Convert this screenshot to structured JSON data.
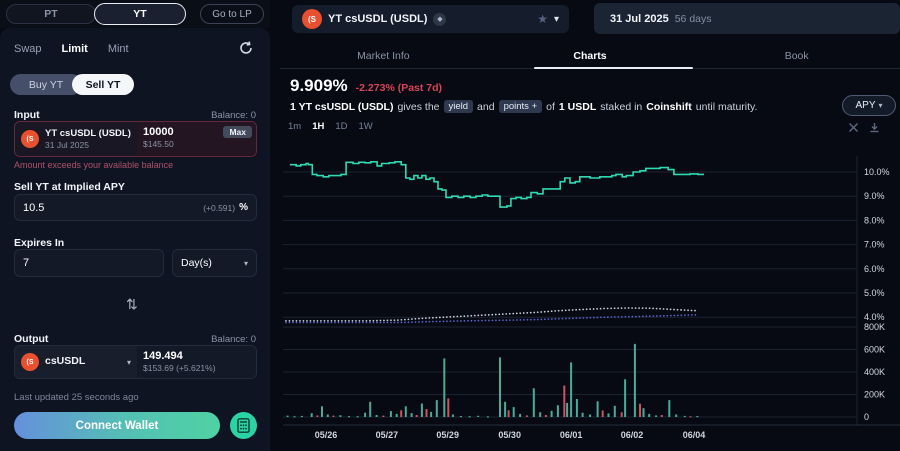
{
  "colors": {
    "accent_teal": "#2fd9b2",
    "accent_red": "#d94457",
    "brand_orange": "#e8502f",
    "button_gradient_from": "#6590dc",
    "button_gradient_to": "#4fd2a2"
  },
  "topbar": {
    "pt_label": "PT",
    "yt_label": "YT",
    "lp_label": "Go to LP"
  },
  "trade_panel": {
    "tabs": [
      "Swap",
      "Limit",
      "Mint"
    ],
    "active_tab": "Limit",
    "toggle": {
      "buy": "Buy YT",
      "sell": "Sell YT",
      "active": "Sell YT"
    },
    "input_label": "Input",
    "input_balance": "Balance: 0",
    "input_token": {
      "name": "YT csUSDL (USDL)",
      "maturity": "31 Jul 2025"
    },
    "input_amount": "10000",
    "input_usd": "$145.50",
    "max_label": "Max",
    "error": "Amount exceeds your available balance",
    "apy_section": {
      "label": "Sell YT at Implied APY",
      "value": "10.5",
      "delta": "(+0.591)",
      "unit": "%"
    },
    "expires": {
      "label": "Expires In",
      "value": "7",
      "unit": "Day(s)"
    },
    "output_label": "Output",
    "output_balance": "Balance: 0",
    "output_token": "csUSDL",
    "output_amount": "149.494",
    "output_usd": "$153.69 (+5.621%)",
    "last_updated": "Last updated 25 seconds ago",
    "connect_label": "Connect Wallet"
  },
  "market_header": {
    "token_name": "YT csUSDL (USDL)",
    "maturity_date": "31 Jul 2025",
    "days_left": "56 days"
  },
  "market_tabs": {
    "items": [
      "Market Info",
      "Charts",
      "Book"
    ],
    "active": "Charts"
  },
  "price_header": {
    "apy": "9.909%",
    "change": "-2.273% (Past 7d)"
  },
  "description": {
    "t1": "1 YT csUSDL (USDL)",
    "t2": "gives the",
    "badge_yield": "yield",
    "t3": "and",
    "badge_points": "points +",
    "t4": "of",
    "t5": "1 USDL",
    "t6": "staked in",
    "t7": "Coinshift",
    "t8": "until maturity."
  },
  "chart_controls": {
    "timeframes": [
      "1m",
      "1H",
      "1D",
      "1W"
    ],
    "active_timeframe": "1H",
    "unit_label": "APY"
  },
  "chart_data": {
    "type": "line",
    "title": "YT csUSDL (USDL) Implied APY",
    "unit": "APY %",
    "legend_position": "none",
    "grid": true,
    "y_axis": {
      "side": "right",
      "percent_range": [
        3.6,
        10.6
      ],
      "percent_ticks": [
        {
          "v": 10,
          "label": "10.0%"
        },
        {
          "v": 9,
          "label": "9.0%"
        },
        {
          "v": 8,
          "label": "8.0%"
        },
        {
          "v": 7,
          "label": "7.0%"
        },
        {
          "v": 6,
          "label": "6.0%"
        },
        {
          "v": 5,
          "label": "5.0%"
        },
        {
          "v": 4,
          "label": "4.0%"
        }
      ],
      "volume_range": [
        0,
        800
      ],
      "volume_ticks": [
        {
          "v": 800,
          "label": "800K"
        },
        {
          "v": 600,
          "label": "600K"
        },
        {
          "v": 400,
          "label": "400K"
        },
        {
          "v": 200,
          "label": "200K"
        },
        {
          "v": 0,
          "label": "0"
        }
      ]
    },
    "x_axis": {
      "ticks": [
        {
          "f": 0.075,
          "label": "05/26"
        },
        {
          "f": 0.181,
          "label": "05/27"
        },
        {
          "f": 0.287,
          "label": "05/29"
        },
        {
          "f": 0.395,
          "label": "05/30"
        },
        {
          "f": 0.502,
          "label": "06/01"
        },
        {
          "f": 0.608,
          "label": "06/02"
        },
        {
          "f": 0.716,
          "label": "06/04"
        }
      ]
    },
    "series": [
      {
        "name": "Implied APY",
        "style": "step",
        "color": "#2fd9b2",
        "points": [
          [
            0.012,
            10.3
          ],
          [
            0.023,
            10.25
          ],
          [
            0.031,
            10.3
          ],
          [
            0.04,
            10.35
          ],
          [
            0.044,
            10.3
          ],
          [
            0.051,
            9.9
          ],
          [
            0.059,
            9.85
          ],
          [
            0.07,
            9.8
          ],
          [
            0.08,
            9.85
          ],
          [
            0.091,
            9.85
          ],
          [
            0.101,
            9.9
          ],
          [
            0.11,
            10.4
          ],
          [
            0.122,
            10.35
          ],
          [
            0.132,
            10.4
          ],
          [
            0.143,
            10.38
          ],
          [
            0.153,
            10.42
          ],
          [
            0.164,
            10.25
          ],
          [
            0.172,
            10.35
          ],
          [
            0.185,
            10.38
          ],
          [
            0.195,
            10.42
          ],
          [
            0.206,
            10.3
          ],
          [
            0.214,
            9.75
          ],
          [
            0.221,
            9.7
          ],
          [
            0.228,
            9.85
          ],
          [
            0.235,
            9.75
          ],
          [
            0.242,
            9.85
          ],
          [
            0.249,
            9.7
          ],
          [
            0.256,
            9.75
          ],
          [
            0.263,
            9.6
          ],
          [
            0.27,
            9.3
          ],
          [
            0.277,
            9.25
          ],
          [
            0.284,
            8.95
          ],
          [
            0.294,
            9.0
          ],
          [
            0.305,
            8.95
          ],
          [
            0.315,
            9.0
          ],
          [
            0.326,
            8.95
          ],
          [
            0.336,
            9.0
          ],
          [
            0.347,
            9.05
          ],
          [
            0.357,
            9.0
          ],
          [
            0.368,
            9.0
          ],
          [
            0.378,
            8.55
          ],
          [
            0.39,
            8.6
          ],
          [
            0.397,
            8.9
          ],
          [
            0.406,
            8.95
          ],
          [
            0.415,
            8.9
          ],
          [
            0.425,
            8.95
          ],
          [
            0.432,
            9.15
          ],
          [
            0.443,
            9.1
          ],
          [
            0.453,
            9.3
          ],
          [
            0.47,
            9.3
          ],
          [
            0.483,
            9.6
          ],
          [
            0.491,
            9.75
          ],
          [
            0.5,
            9.55
          ],
          [
            0.509,
            9.6
          ],
          [
            0.517,
            9.8
          ],
          [
            0.535,
            9.75
          ],
          [
            0.552,
            9.8
          ],
          [
            0.573,
            9.85
          ],
          [
            0.58,
            9.9
          ],
          [
            0.591,
            9.8
          ],
          [
            0.598,
            9.85
          ],
          [
            0.61,
            10.0
          ],
          [
            0.622,
            10.05
          ],
          [
            0.632,
            10.15
          ],
          [
            0.657,
            10.18
          ],
          [
            0.671,
            10.1
          ],
          [
            0.681,
            9.9
          ],
          [
            0.709,
            9.92
          ],
          [
            0.723,
            9.9
          ]
        ]
      },
      {
        "name": "Overlay dotted light",
        "style": "dotted",
        "color": "#c9cfdd",
        "points": [
          [
            0.005,
            3.85
          ],
          [
            0.15,
            3.85
          ],
          [
            0.2,
            3.88
          ],
          [
            0.24,
            3.95
          ],
          [
            0.28,
            4.0
          ],
          [
            0.32,
            4.05
          ],
          [
            0.36,
            4.1
          ],
          [
            0.4,
            4.15
          ],
          [
            0.44,
            4.2
          ],
          [
            0.48,
            4.27
          ],
          [
            0.52,
            4.32
          ],
          [
            0.56,
            4.36
          ],
          [
            0.6,
            4.38
          ],
          [
            0.64,
            4.37
          ],
          [
            0.68,
            4.32
          ],
          [
            0.72,
            4.27
          ]
        ]
      },
      {
        "name": "Overlay dotted indigo",
        "style": "dotted",
        "color": "#5b63cc",
        "points": [
          [
            0.005,
            3.78
          ],
          [
            0.2,
            3.78
          ],
          [
            0.26,
            3.82
          ],
          [
            0.32,
            3.85
          ],
          [
            0.38,
            3.87
          ],
          [
            0.44,
            3.9
          ],
          [
            0.5,
            3.95
          ],
          [
            0.56,
            4.0
          ],
          [
            0.62,
            4.03
          ],
          [
            0.68,
            4.07
          ],
          [
            0.72,
            4.1
          ]
        ]
      }
    ],
    "volume": {
      "up_color": "#4aab9a",
      "down_color": "#c9545f",
      "bars": [
        [
          0.008,
          12,
          "t"
        ],
        [
          0.02,
          7,
          "t"
        ],
        [
          0.033,
          10,
          "t"
        ],
        [
          0.05,
          34,
          "t"
        ],
        [
          0.06,
          14,
          "r"
        ],
        [
          0.068,
          95,
          "t"
        ],
        [
          0.078,
          22,
          "t"
        ],
        [
          0.088,
          12,
          "r"
        ],
        [
          0.1,
          16,
          "t"
        ],
        [
          0.115,
          8,
          "t"
        ],
        [
          0.13,
          7,
          "t"
        ],
        [
          0.143,
          38,
          "t"
        ],
        [
          0.152,
          135,
          "t"
        ],
        [
          0.163,
          18,
          "t"
        ],
        [
          0.175,
          12,
          "r"
        ],
        [
          0.188,
          52,
          "t"
        ],
        [
          0.198,
          28,
          "t"
        ],
        [
          0.206,
          60,
          "r"
        ],
        [
          0.214,
          95,
          "t"
        ],
        [
          0.224,
          35,
          "t"
        ],
        [
          0.233,
          18,
          "r"
        ],
        [
          0.242,
          120,
          "t"
        ],
        [
          0.25,
          70,
          "r"
        ],
        [
          0.258,
          45,
          "t"
        ],
        [
          0.268,
          150,
          "t"
        ],
        [
          0.281,
          520,
          "t"
        ],
        [
          0.288,
          165,
          "r"
        ],
        [
          0.296,
          22,
          "t"
        ],
        [
          0.31,
          9,
          "t"
        ],
        [
          0.325,
          7,
          "t"
        ],
        [
          0.34,
          11,
          "t"
        ],
        [
          0.357,
          6,
          "t"
        ],
        [
          0.378,
          530,
          "t"
        ],
        [
          0.387,
          135,
          "t"
        ],
        [
          0.393,
          60,
          "r"
        ],
        [
          0.402,
          88,
          "t"
        ],
        [
          0.413,
          28,
          "t"
        ],
        [
          0.425,
          14,
          "r"
        ],
        [
          0.437,
          255,
          "t"
        ],
        [
          0.448,
          42,
          "t"
        ],
        [
          0.458,
          18,
          "r"
        ],
        [
          0.468,
          55,
          "t"
        ],
        [
          0.479,
          105,
          "t"
        ],
        [
          0.49,
          280,
          "r"
        ],
        [
          0.495,
          125,
          "t"
        ],
        [
          0.502,
          485,
          "t"
        ],
        [
          0.512,
          160,
          "t"
        ],
        [
          0.522,
          38,
          "t"
        ],
        [
          0.535,
          22,
          "t"
        ],
        [
          0.548,
          140,
          "t"
        ],
        [
          0.557,
          58,
          "r"
        ],
        [
          0.567,
          32,
          "t"
        ],
        [
          0.578,
          100,
          "t"
        ],
        [
          0.59,
          42,
          "r"
        ],
        [
          0.596,
          335,
          "t"
        ],
        [
          0.613,
          650,
          "t"
        ],
        [
          0.622,
          118,
          "r"
        ],
        [
          0.628,
          78,
          "t"
        ],
        [
          0.638,
          28,
          "t"
        ],
        [
          0.65,
          14,
          "t"
        ],
        [
          0.66,
          18,
          "r"
        ],
        [
          0.673,
          150,
          "t"
        ],
        [
          0.685,
          22,
          "t"
        ],
        [
          0.7,
          10,
          "t"
        ],
        [
          0.71,
          7,
          "r"
        ],
        [
          0.722,
          9,
          "t"
        ]
      ]
    }
  }
}
